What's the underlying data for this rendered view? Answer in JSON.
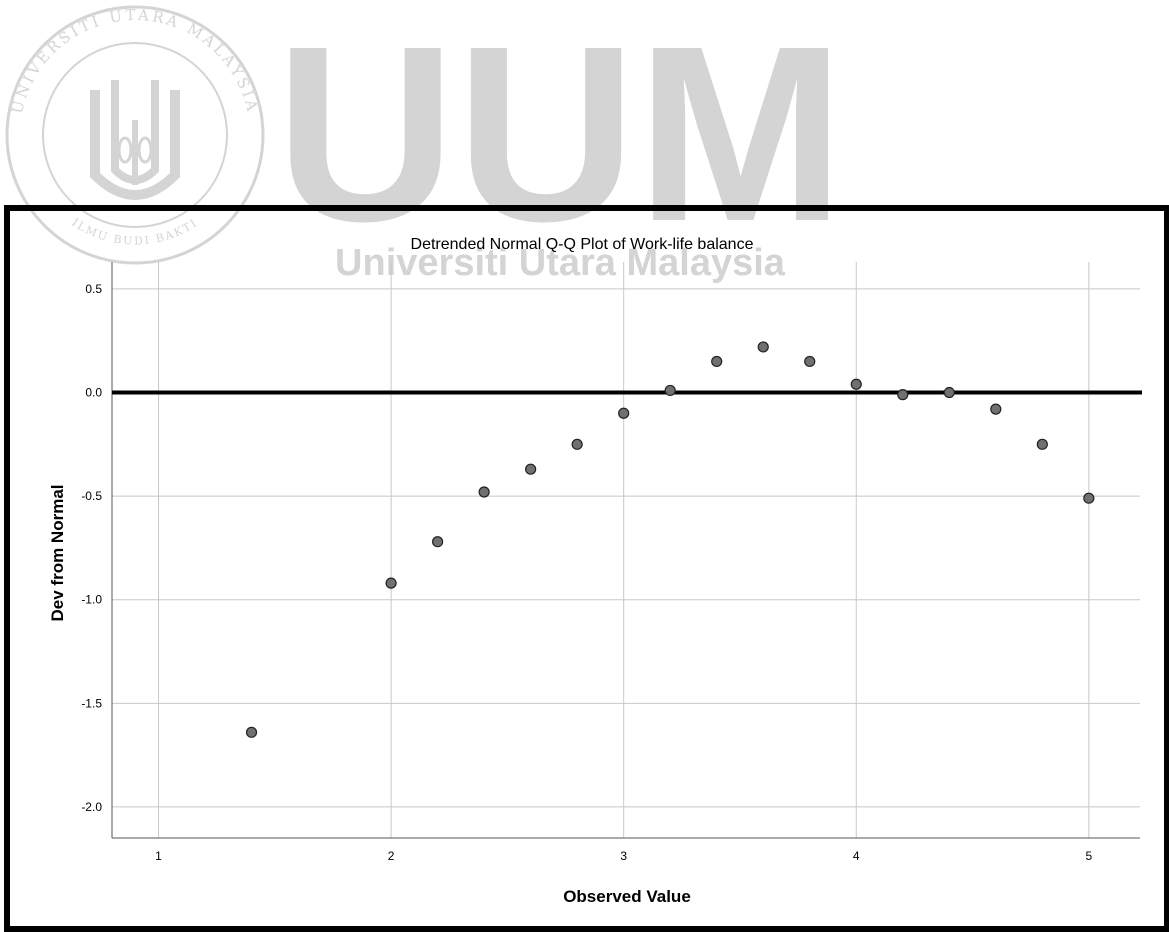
{
  "watermark": {
    "big_text": "UUM",
    "sub_text": "Universiti Utara Malaysia",
    "seal_ring_top": "UNIVERSITI UTARA MALAYSIA",
    "seal_ring_bottom": "ILMU BUDI BAKTI",
    "color": "#d4d4d4"
  },
  "chart_data": {
    "type": "scatter",
    "title": "Detrended Normal Q-Q Plot of Work-life balance",
    "xlabel": "Observed Value",
    "ylabel": "Dev from Normal",
    "xlim": [
      0.8,
      5.22
    ],
    "ylim": [
      -2.15,
      0.63
    ],
    "xticks": [
      1,
      2,
      3,
      4,
      5
    ],
    "yticks": [
      0.5,
      0.0,
      -0.5,
      -1.0,
      -1.5,
      -2.0
    ],
    "xtick_labels": [
      "1",
      "2",
      "3",
      "4",
      "5"
    ],
    "ytick_labels": [
      "0.5",
      "0.0",
      "-0.5",
      "-1.0",
      "-1.5",
      "-2.0"
    ],
    "grid": true,
    "reference_line_y": 0,
    "points": [
      {
        "x": 1.4,
        "y": -1.64
      },
      {
        "x": 2.0,
        "y": -0.92
      },
      {
        "x": 2.2,
        "y": -0.72
      },
      {
        "x": 2.4,
        "y": -0.48
      },
      {
        "x": 2.6,
        "y": -0.37
      },
      {
        "x": 2.8,
        "y": -0.25
      },
      {
        "x": 3.0,
        "y": -0.1
      },
      {
        "x": 3.2,
        "y": 0.01
      },
      {
        "x": 3.4,
        "y": 0.15
      },
      {
        "x": 3.6,
        "y": 0.22
      },
      {
        "x": 3.8,
        "y": 0.15
      },
      {
        "x": 4.0,
        "y": 0.04
      },
      {
        "x": 4.2,
        "y": -0.01
      },
      {
        "x": 4.4,
        "y": 0.0
      },
      {
        "x": 4.6,
        "y": -0.08
      },
      {
        "x": 4.8,
        "y": -0.25
      },
      {
        "x": 5.0,
        "y": -0.51
      }
    ],
    "marker_color": "#707070",
    "grid_color": "#c8c8c8"
  }
}
